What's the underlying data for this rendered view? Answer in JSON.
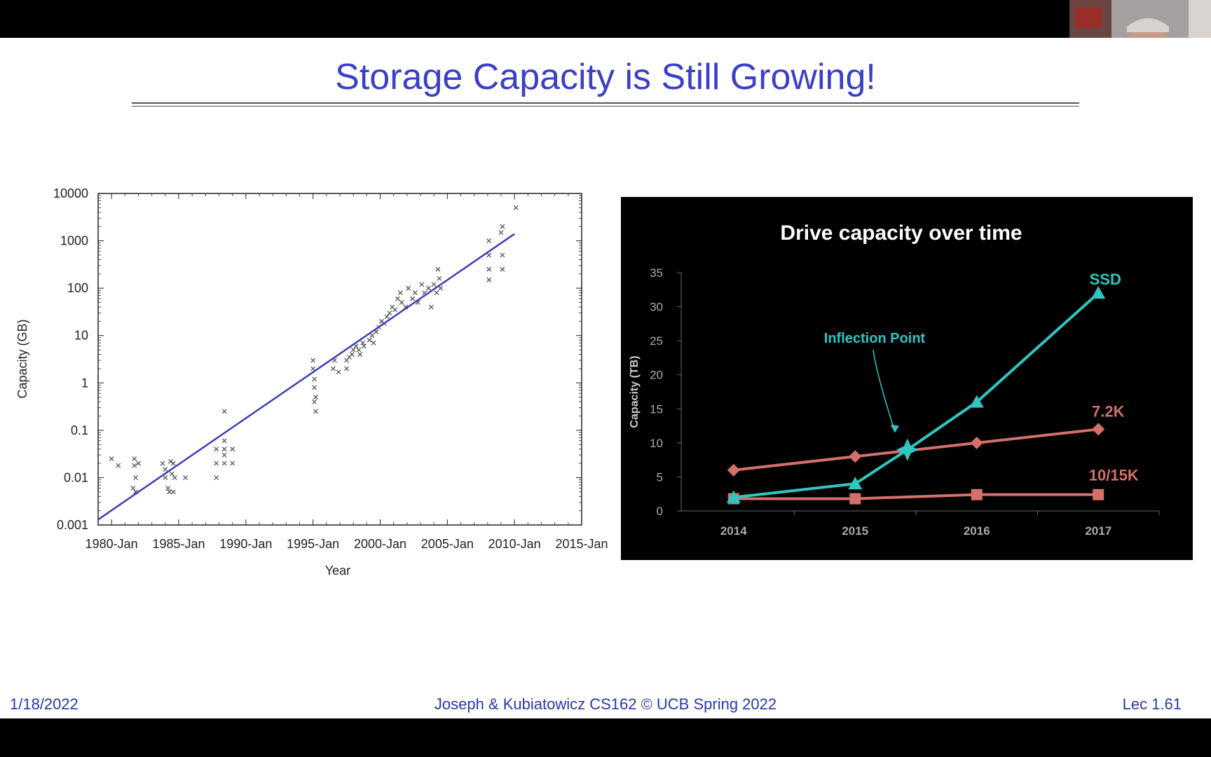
{
  "slide": {
    "title": "Storage Capacity is Still Growing!",
    "footer_left": "1/18/2022",
    "footer_center": "Joseph & Kubiatowicz CS162 © UCB Spring 2022",
    "footer_right": "Lec 1.61",
    "title_color": "#3b3fc6"
  },
  "chart_data": [
    {
      "type": "scatter",
      "title": "",
      "xlabel": "Year",
      "ylabel": "Capacity (GB)",
      "yscale": "log",
      "ylim": [
        0.001,
        10000
      ],
      "xlim": [
        1979,
        2015
      ],
      "x_ticks": [
        "1980-Jan",
        "1985-Jan",
        "1990-Jan",
        "1995-Jan",
        "2000-Jan",
        "2005-Jan",
        "2010-Jan",
        "2015-Jan"
      ],
      "y_ticks": [
        "10000",
        "1000",
        "100",
        "10",
        "1",
        "0.1",
        "0.01",
        "0.001"
      ],
      "trendline": {
        "color": "#3a3fb8",
        "x": [
          1979,
          2010
        ],
        "y": [
          0.0013,
          1400
        ]
      },
      "points": [
        [
          1980,
          0.025
        ],
        [
          1980.5,
          0.018
        ],
        [
          1981.7,
          0.025
        ],
        [
          1981.7,
          0.018
        ],
        [
          1981.8,
          0.01
        ],
        [
          1981.6,
          0.006
        ],
        [
          1981.8,
          0.005
        ],
        [
          1982,
          0.02
        ],
        [
          1983.8,
          0.02
        ],
        [
          1984,
          0.015
        ],
        [
          1984,
          0.01
        ],
        [
          1984.2,
          0.006
        ],
        [
          1984.3,
          0.005
        ],
        [
          1984.4,
          0.022
        ],
        [
          1984.6,
          0.02
        ],
        [
          1984.5,
          0.012
        ],
        [
          1984.7,
          0.01
        ],
        [
          1984.6,
          0.005
        ],
        [
          1985.5,
          0.01
        ],
        [
          1987.8,
          0.04
        ],
        [
          1987.8,
          0.02
        ],
        [
          1987.8,
          0.01
        ],
        [
          1988.4,
          0.25
        ],
        [
          1988.4,
          0.06
        ],
        [
          1988.4,
          0.04
        ],
        [
          1988.4,
          0.03
        ],
        [
          1988.4,
          0.02
        ],
        [
          1989,
          0.04
        ],
        [
          1989,
          0.02
        ],
        [
          1995,
          3
        ],
        [
          1995,
          2
        ],
        [
          1995.1,
          1.2
        ],
        [
          1995.1,
          0.8
        ],
        [
          1995.2,
          0.5
        ],
        [
          1995.1,
          0.4
        ],
        [
          1995.2,
          0.25
        ],
        [
          1996.5,
          2
        ],
        [
          1996.6,
          3
        ],
        [
          1996.9,
          1.7
        ],
        [
          1997.5,
          3
        ],
        [
          1997.5,
          2
        ],
        [
          1997.7,
          3.5
        ],
        [
          1997.9,
          4
        ],
        [
          1998,
          5
        ],
        [
          1998.2,
          6
        ],
        [
          1998.4,
          5
        ],
        [
          1998.5,
          4
        ],
        [
          1998.7,
          7
        ],
        [
          1998.8,
          6
        ],
        [
          1999.2,
          8
        ],
        [
          1999.4,
          10
        ],
        [
          1999.5,
          7
        ],
        [
          1999.7,
          12
        ],
        [
          1999.9,
          15
        ],
        [
          2000.1,
          20
        ],
        [
          2000.3,
          18
        ],
        [
          2000.5,
          25
        ],
        [
          2000.7,
          30
        ],
        [
          2000.9,
          40
        ],
        [
          2001.1,
          35
        ],
        [
          2001.3,
          60
        ],
        [
          2001.5,
          80
        ],
        [
          2001.6,
          50
        ],
        [
          2001.9,
          40
        ],
        [
          2002.1,
          100
        ],
        [
          2002.4,
          60
        ],
        [
          2002.6,
          80
        ],
        [
          2002.8,
          50
        ],
        [
          2003.1,
          120
        ],
        [
          2003.3,
          80
        ],
        [
          2003.6,
          100
        ],
        [
          2003.8,
          40
        ],
        [
          2004,
          120
        ],
        [
          2004.2,
          80
        ],
        [
          2004.3,
          250
        ],
        [
          2004.4,
          160
        ],
        [
          2004.5,
          100
        ],
        [
          2008.1,
          1000
        ],
        [
          2008.1,
          500
        ],
        [
          2008.1,
          250
        ],
        [
          2008.1,
          150
        ],
        [
          2009,
          1500
        ],
        [
          2009.1,
          2000
        ],
        [
          2009.1,
          500
        ],
        [
          2009.1,
          250
        ],
        [
          2010.1,
          5000
        ]
      ]
    },
    {
      "type": "line",
      "title": "Drive capacity over time",
      "xlabel": "",
      "ylabel": "Capacity (TB)",
      "ylim": [
        0,
        35
      ],
      "y_ticks": [
        0,
        5,
        10,
        15,
        20,
        25,
        30,
        35
      ],
      "categories": [
        "2014",
        "2015",
        "2016",
        "2017"
      ],
      "background": "#000000",
      "series": [
        {
          "name": "SSD",
          "color": "#2fc6c0",
          "marker": "triangle",
          "x": [
            2014,
            2015,
            2015.43,
            2016,
            2017
          ],
          "values": [
            2,
            4,
            9,
            16,
            32
          ]
        },
        {
          "name": "7.2K",
          "color": "#d4706a",
          "marker": "diamond",
          "x": [
            2014,
            2015,
            2016,
            2017
          ],
          "values": [
            6,
            8,
            10,
            12
          ]
        },
        {
          "name": "10/15K",
          "color": "#d4706a",
          "marker": "square",
          "x": [
            2014,
            2015,
            2016,
            2017
          ],
          "values": [
            1.8,
            1.8,
            2.4,
            2.4
          ]
        }
      ],
      "annotation": {
        "text": "Inflection Point",
        "x": 2015.43,
        "y": 9
      }
    }
  ]
}
